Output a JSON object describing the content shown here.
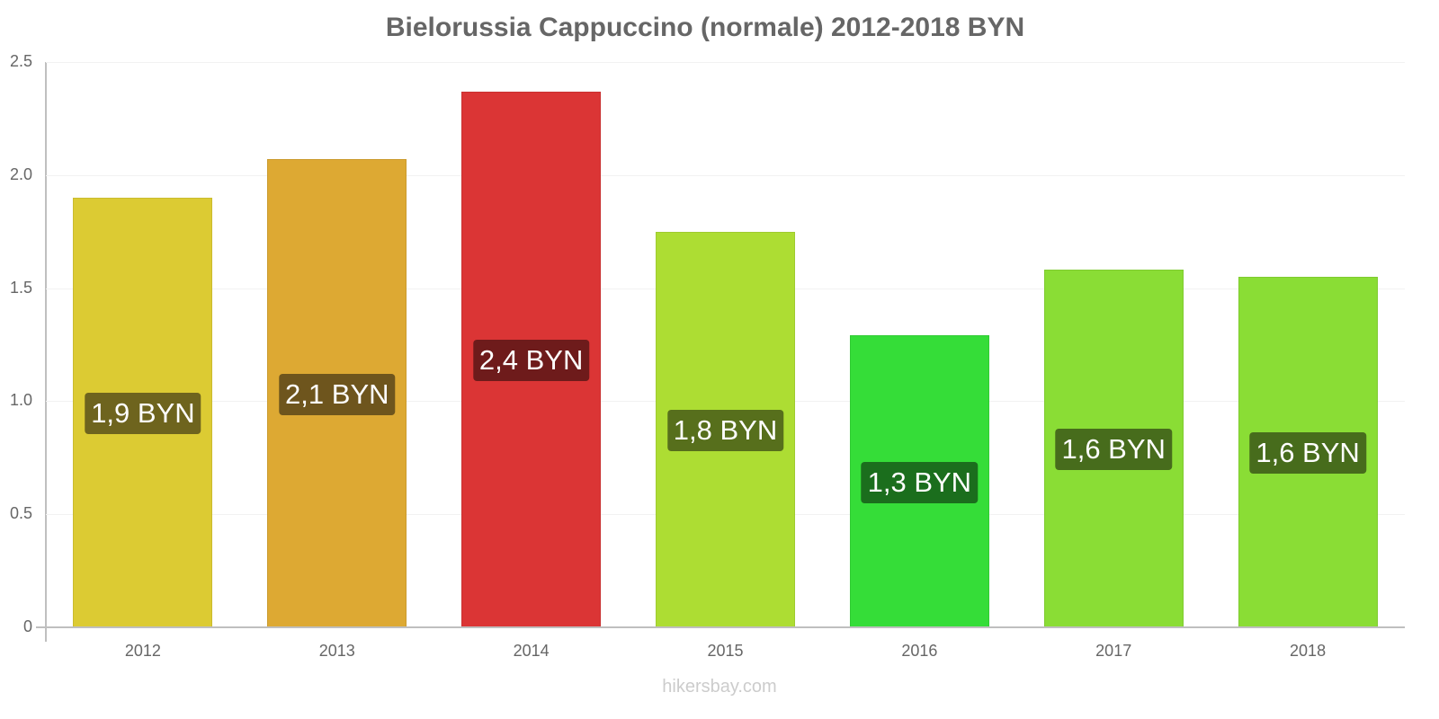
{
  "chart_data": {
    "type": "bar",
    "title": "Bielorussia Cappuccino (normale) 2012-2018 BYN",
    "xlabel": "",
    "ylabel": "",
    "ylim": [
      0,
      2.5
    ],
    "yticks": [
      "0",
      "0.5",
      "1.0",
      "1.5",
      "2.0",
      "2.5"
    ],
    "grid": true,
    "legend": null,
    "categories": [
      "2012",
      "2013",
      "2014",
      "2015",
      "2016",
      "2017",
      "2018"
    ],
    "values": [
      1.9,
      2.07,
      2.37,
      1.75,
      1.29,
      1.58,
      1.55
    ],
    "data_labels": [
      "1,9 BYN",
      "2,1 BYN",
      "2,4 BYN",
      "1,8 BYN",
      "1,3 BYN",
      "1,6 BYN",
      "1,6 BYN"
    ],
    "bar_colors": [
      "#dccb33",
      "#dda933",
      "#db3535",
      "#addd33",
      "#35dd38",
      "#8add35",
      "#8add35"
    ],
    "label_bg_colors": [
      "#6e641e",
      "#6e551d",
      "#6e1b1b",
      "#576f1c",
      "#1b6e1d",
      "#476c1c",
      "#476c1c"
    ]
  },
  "title": "Bielorussia Cappuccino (normale) 2012-2018 BYN",
  "watermark": "hikersbay.com",
  "yaxis": {
    "ticks": [
      "0",
      "0.5",
      "1.0",
      "1.5",
      "2.0",
      "2.5"
    ]
  },
  "bars": [
    {
      "year": "2012",
      "label": "1,9 BYN"
    },
    {
      "year": "2013",
      "label": "2,1 BYN"
    },
    {
      "year": "2014",
      "label": "2,4 BYN"
    },
    {
      "year": "2015",
      "label": "1,8 BYN"
    },
    {
      "year": "2016",
      "label": "1,3 BYN"
    },
    {
      "year": "2017",
      "label": "1,6 BYN"
    },
    {
      "year": "2018",
      "label": "1,6 BYN"
    }
  ]
}
